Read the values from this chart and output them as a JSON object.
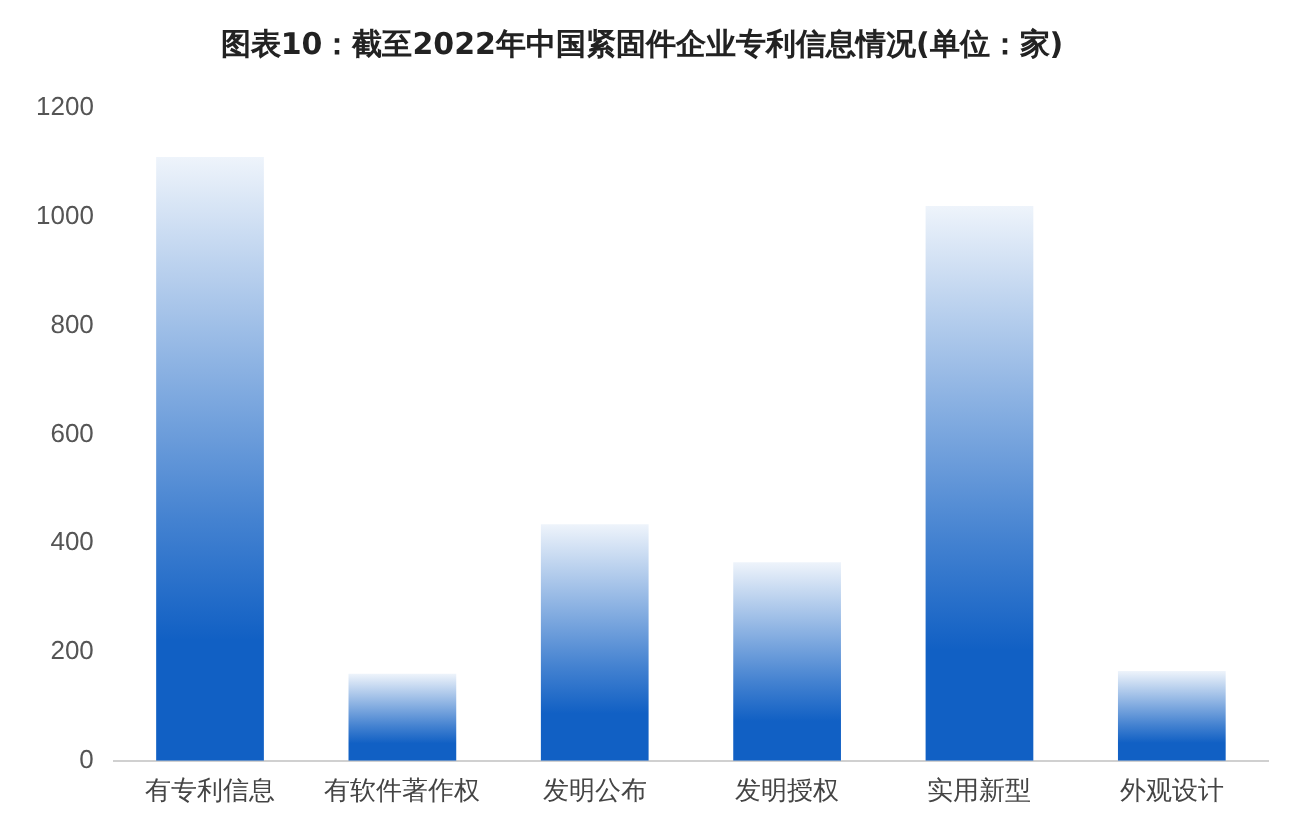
{
  "chart_data": {
    "type": "bar",
    "title": "图表10：截至2022年中国紧固件企业专利信息情况(单位：家)",
    "categories": [
      "有专利信息",
      "有软件著作权",
      "发明公布",
      "发明授权",
      "实用新型",
      "外观设计"
    ],
    "values": [
      1110,
      160,
      435,
      365,
      1020,
      165
    ],
    "color": "#1160c4",
    "ylim": [
      0,
      1200
    ],
    "yticks": [
      0,
      200,
      400,
      600,
      800,
      1000,
      1200
    ],
    "grid": false
  }
}
